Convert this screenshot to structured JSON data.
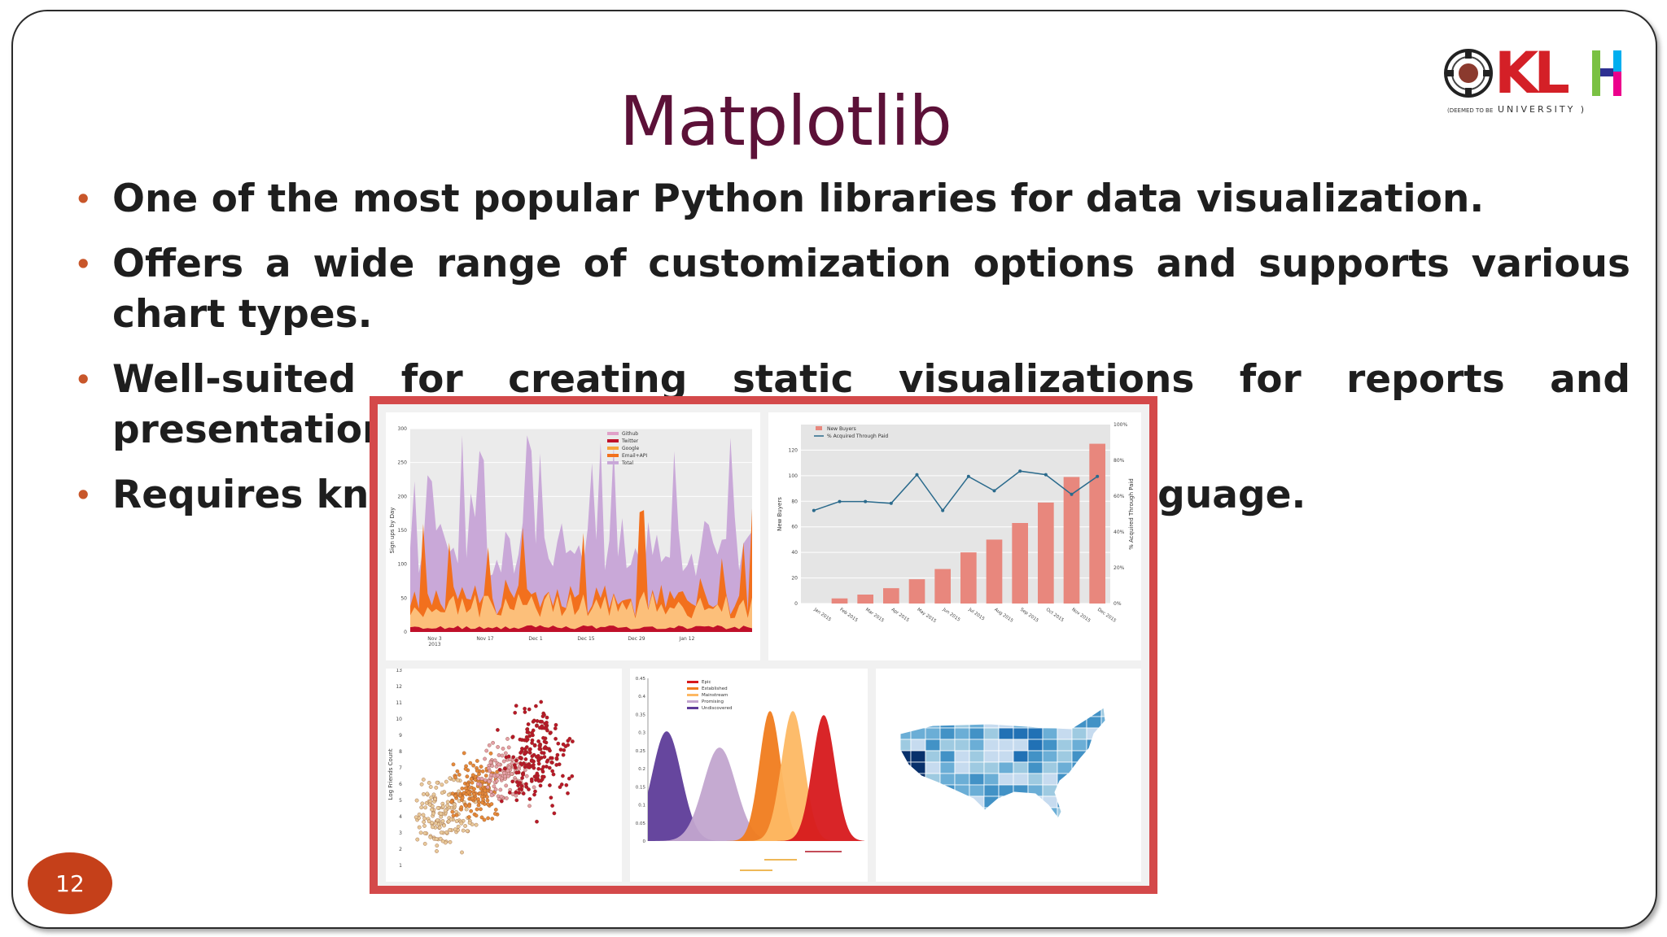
{
  "slide": {
    "title": "Matplotlib",
    "page_number": "12",
    "bullets": [
      "One of the most popular Python libraries for data visualization.",
      "Offers a wide range of customization options and supports various chart types.",
      "Well-suited for creating static visualizations for reports and presentations.",
      "Requires knowledge of Python programming language."
    ],
    "bullet_color": "#c8562a",
    "title_color": "#5c1138"
  },
  "logo": {
    "text": "KLH",
    "subtitle_small": "(DEEMED TO BE",
    "subtitle_main": "UNIVERSITY )",
    "colors": [
      "#d42027",
      "#2e3192",
      "#7ac143",
      "#00aeef",
      "#ec008c"
    ]
  },
  "gallery": {
    "frame_color": "#d4494a",
    "area_chart": {
      "ylabel": "Sign ups by Day",
      "yticks": [
        "0",
        "50",
        "100",
        "150",
        "200",
        "250",
        "300"
      ],
      "xticks": [
        "Nov 3\n2013",
        "Nov 17",
        "Dec 1",
        "Dec 15",
        "Dec 29",
        "Jan 12"
      ],
      "legend": [
        "Github",
        "Twitter",
        "Google",
        "Email+API",
        "Total"
      ],
      "legend_colors": [
        "#e0a0c8",
        "#c0102a",
        "#f7a33c",
        "#f2701d",
        "#c9a8d8"
      ]
    },
    "bar_line_chart": {
      "legend": [
        "New Buyers",
        "% Acquired Through Paid"
      ],
      "ylabel_left": "New Buyers",
      "ylabel_right": "% Acquired Through Paid",
      "yticks_left": [
        "0",
        "20",
        "40",
        "60",
        "80",
        "100",
        "120"
      ],
      "yticks_right": [
        "0%",
        "20%",
        "40%",
        "60%",
        "80%",
        "100%"
      ],
      "xticks": [
        "Jan 2015",
        "Feb 2015",
        "Mar 2015",
        "Apr 2015",
        "May 2015",
        "Jun 2015",
        "Jul 2015",
        "Aug 2015",
        "Sep 2015",
        "Oct 2015",
        "Nov 2015",
        "Dec 2015"
      ],
      "bars": [
        0,
        4,
        7,
        12,
        19,
        27,
        40,
        50,
        63,
        79,
        99,
        125
      ],
      "line": [
        52,
        57,
        57,
        56,
        72,
        52,
        71,
        63,
        74,
        72,
        61,
        71
      ]
    },
    "scatter_chart": {
      "ylabel": "Log Friends Count",
      "yticks": [
        "1",
        "2",
        "3",
        "4",
        "5",
        "6",
        "7",
        "8",
        "9",
        "10",
        "11",
        "12",
        "13"
      ]
    },
    "density_chart": {
      "legend": [
        "Epic",
        "Established",
        "Mainstream",
        "Promising",
        "Undiscovered"
      ],
      "legend_colors": [
        "#d7191c",
        "#f07c1e",
        "#fdb863",
        "#c2a5cf",
        "#5e3c99"
      ],
      "yticks": [
        "0",
        "0.05",
        "0.1",
        "0.15",
        "0.2",
        "0.25",
        "0.3",
        "0.35",
        "0.4",
        "0.45"
      ]
    },
    "map_chart": {
      "colors": [
        "#08306b",
        "#2171b5",
        "#4292c6",
        "#6baed6",
        "#9ecae1",
        "#c6dbef",
        "#deebf7"
      ]
    }
  }
}
